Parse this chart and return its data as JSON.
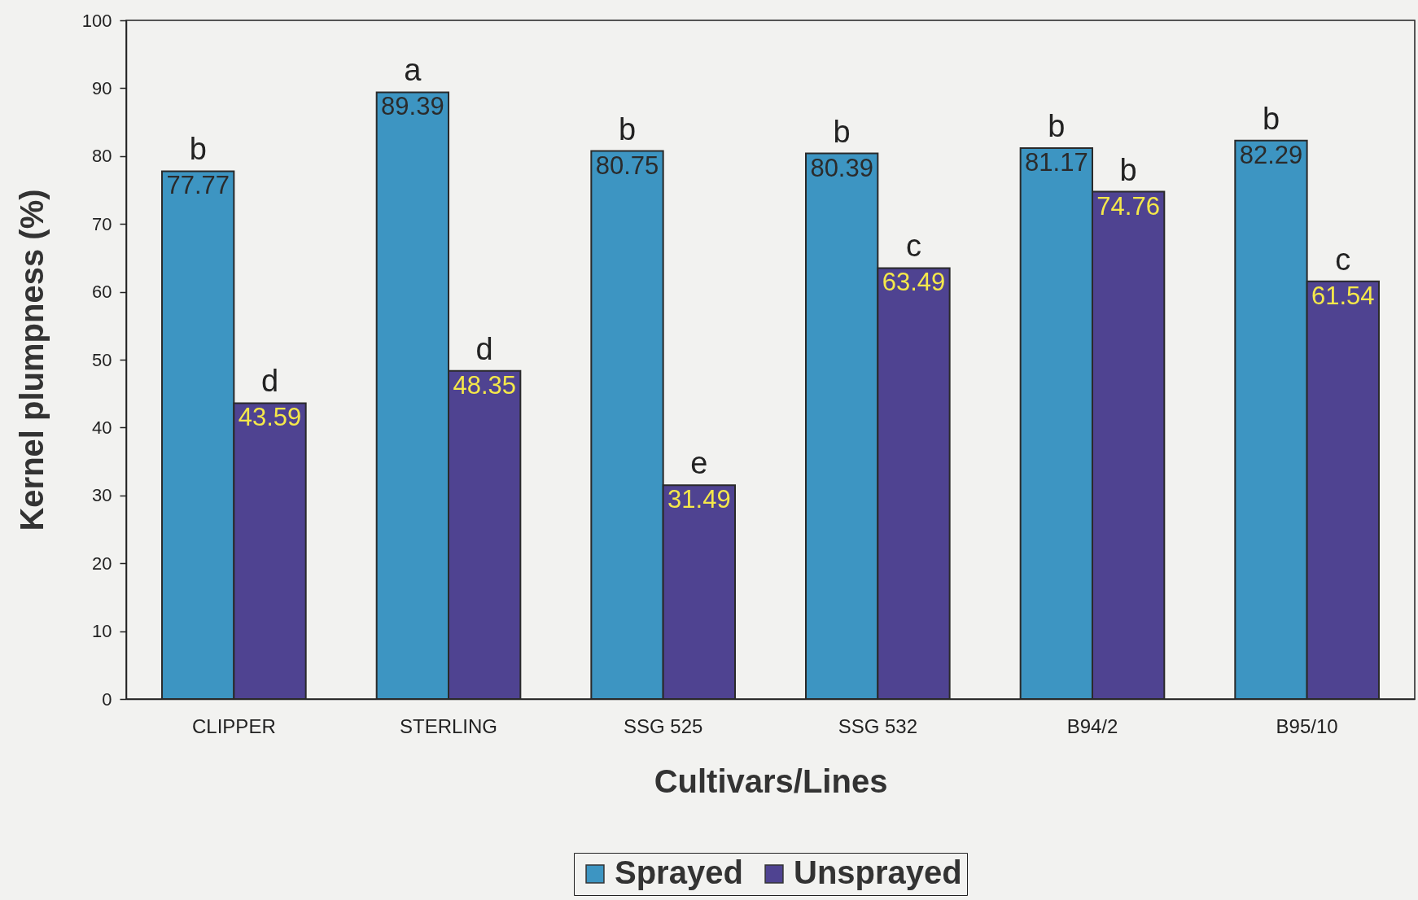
{
  "chart_data": {
    "type": "bar",
    "xlabel": "Cultivars/Lines",
    "ylabel": "Kernel plumpness (%)",
    "categories": [
      "CLIPPER",
      "STERLING",
      "SSG 525",
      "SSG 532",
      "B94/2",
      "B95/10"
    ],
    "series": [
      {
        "name": "Sprayed",
        "color": "#3d95c2",
        "values": [
          77.77,
          89.39,
          80.75,
          80.39,
          81.17,
          82.29
        ]
      },
      {
        "name": "Unsprayed",
        "color": "#4f4391",
        "values": [
          43.59,
          48.35,
          31.49,
          63.49,
          74.76,
          61.54
        ]
      }
    ],
    "ylim": [
      0,
      100
    ],
    "yticks": [
      0,
      10,
      20,
      30,
      40,
      50,
      60,
      70,
      80,
      90,
      100
    ],
    "data_labels": true,
    "legend": "bottom",
    "annotations": [
      {
        "text": "b",
        "x": "CLIPPER",
        "y": 77.77
      },
      {
        "text": "d",
        "x": "CLIPPER",
        "y": 43.59
      },
      {
        "text": "a",
        "x": "STERLING",
        "y": 89.39
      },
      {
        "text": "d",
        "x": "STERLING",
        "y": 48.35
      },
      {
        "text": "b",
        "x": "SSG 525",
        "y": 80.75
      },
      {
        "text": "e",
        "x": "SSG 525",
        "y": 31.49
      },
      {
        "text": "b",
        "x": "SSG 532",
        "y": 80.39
      },
      {
        "text": "c",
        "x": "SSG 532",
        "y": 63.49
      },
      {
        "text": "b",
        "x": "B94/2",
        "y": 81.17
      },
      {
        "text": "b",
        "x": "B94/2",
        "y": 74.76
      },
      {
        "text": "b",
        "x": "B95/10",
        "y": 82.29
      },
      {
        "text": "c",
        "x": "B95/10",
        "y": 61.54
      }
    ]
  }
}
